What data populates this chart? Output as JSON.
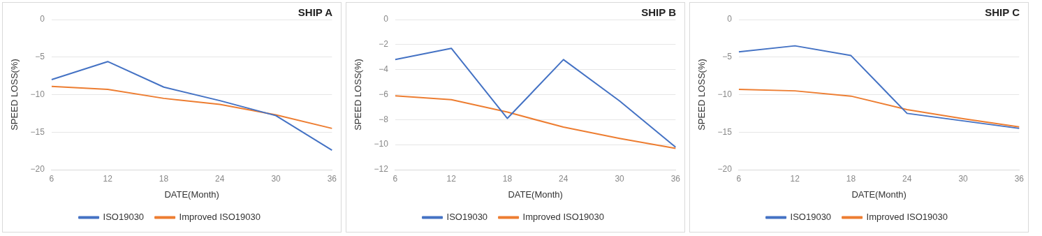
{
  "chart_data": [
    {
      "type": "line",
      "title": "SHIP A",
      "xlabel": "DATE(Month)",
      "ylabel": "SPEED LOSS(%)",
      "categories": [
        "6",
        "12",
        "18",
        "24",
        "30",
        "36"
      ],
      "ylim": [
        -20,
        0
      ],
      "yticks": [
        -20,
        -15,
        -10,
        -5,
        0
      ],
      "grid": "y",
      "legend": "bottom",
      "marker": "none",
      "series": [
        {
          "name": "ISO19030",
          "color": "#4472c4",
          "values": [
            -8,
            -5.6,
            -9,
            -10.8,
            -12.8,
            -17.4
          ]
        },
        {
          "name": "Improved ISO19030",
          "color": "#ed7d31",
          "values": [
            -8.9,
            -9.3,
            -10.5,
            -11.3,
            -12.7,
            -14.5
          ]
        }
      ]
    },
    {
      "type": "line",
      "title": "SHIP B",
      "xlabel": "DATE(Month)",
      "ylabel": "SPEED LOSS(%)",
      "categories": [
        "6",
        "12",
        "18",
        "24",
        "30",
        "36"
      ],
      "ylim": [
        -12,
        0
      ],
      "yticks": [
        -12,
        -10,
        -8,
        -6,
        -4,
        -2,
        0
      ],
      "grid": "y",
      "legend": "bottom",
      "marker": "none",
      "series": [
        {
          "name": "ISO19030",
          "color": "#4472c4",
          "values": [
            -3.2,
            -2.3,
            -7.9,
            -3.2,
            -6.5,
            -10.2
          ]
        },
        {
          "name": "Improved ISO19030",
          "color": "#ed7d31",
          "values": [
            -6.1,
            -6.4,
            -7.4,
            -8.6,
            -9.5,
            -10.3
          ]
        }
      ]
    },
    {
      "type": "line",
      "title": "SHIP C",
      "xlabel": "DATE(Month)",
      "ylabel": "SPEED LOSS(%)",
      "categories": [
        "6",
        "12",
        "18",
        "24",
        "30",
        "36"
      ],
      "ylim": [
        -20,
        0
      ],
      "yticks": [
        -20,
        -15,
        -10,
        -5,
        0
      ],
      "grid": "y",
      "legend": "bottom",
      "marker": "none",
      "series": [
        {
          "name": "ISO19030",
          "color": "#4472c4",
          "values": [
            -4.3,
            -3.5,
            -4.8,
            -12.5,
            -13.5,
            -14.5
          ]
        },
        {
          "name": "Improved ISO19030",
          "color": "#ed7d31",
          "values": [
            -9.3,
            -9.5,
            -10.2,
            -12,
            -13.2,
            -14.3
          ]
        }
      ]
    }
  ]
}
